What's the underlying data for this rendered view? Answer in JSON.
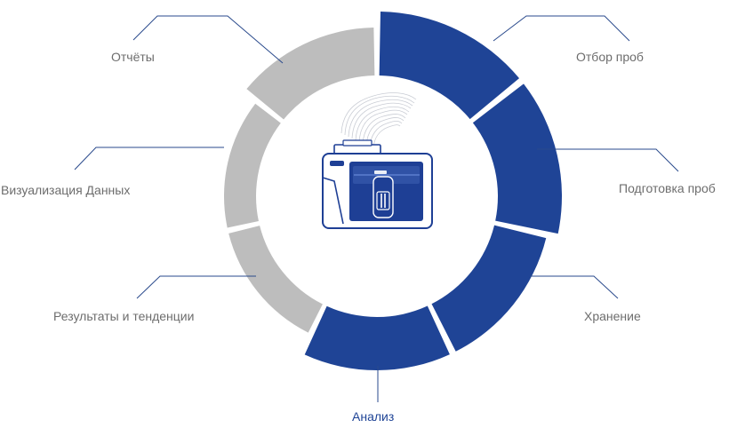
{
  "diagram": {
    "stages": [
      {
        "key": "sampling",
        "label": "Отбор проб",
        "highlighted": true
      },
      {
        "key": "preparation",
        "label": "Подготовка проб",
        "highlighted": true
      },
      {
        "key": "storage",
        "label": "Хранение",
        "highlighted": true
      },
      {
        "key": "analysis",
        "label": "Анализ",
        "highlighted": true
      },
      {
        "key": "results",
        "label": "Результаты и тенденции",
        "highlighted": false
      },
      {
        "key": "visualization",
        "label": "Визуализация Данных",
        "highlighted": false
      },
      {
        "key": "reports",
        "label": "Отчёты",
        "highlighted": false
      }
    ],
    "active_label_key": "analysis",
    "colors": {
      "highlighted": "#1f4496",
      "inactive": "#bdbdbd",
      "leader_line": "#2a4a8c",
      "label_text": "#6d6d6d",
      "active_label_text": "#1f4496",
      "device_body": "#1e3f95"
    },
    "center_icon": "sample-device-icon"
  }
}
